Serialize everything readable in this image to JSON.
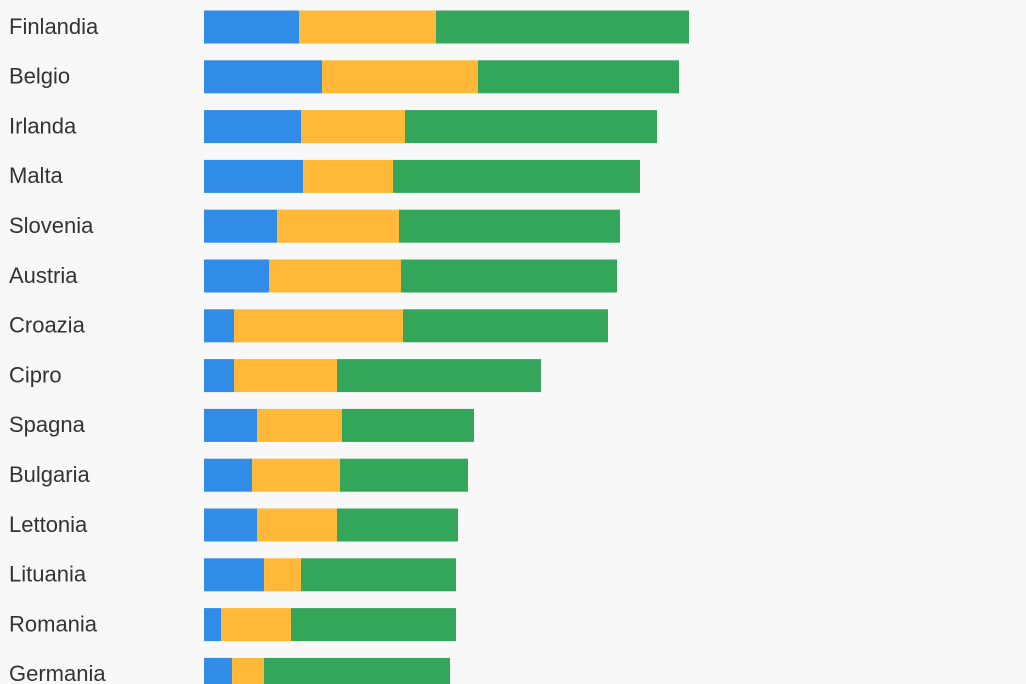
{
  "chart_data": {
    "type": "stacked-bar-horizontal",
    "categories": [
      "Finlandia",
      "Belgio",
      "Irlanda",
      "Malta",
      "Slovenia",
      "Austria",
      "Croazia",
      "Cipro",
      "Spagna",
      "Bulgaria",
      "Lettonia",
      "Lituania",
      "Romania",
      "Germania"
    ],
    "series": [
      {
        "color": "#318ce7",
        "values": [
          95,
          118,
          97,
          99,
          73,
          65,
          30,
          30,
          53,
          48,
          53,
          60,
          17,
          28
        ]
      },
      {
        "color": "#ffb838",
        "values": [
          137,
          156,
          104,
          90,
          122,
          132,
          169,
          103,
          85,
          88,
          80,
          37,
          70,
          32
        ]
      },
      {
        "color": "#33a65a",
        "values": [
          253,
          201,
          252,
          247,
          221,
          216,
          205,
          204,
          132,
          128,
          121,
          155,
          165,
          186
        ]
      }
    ]
  }
}
